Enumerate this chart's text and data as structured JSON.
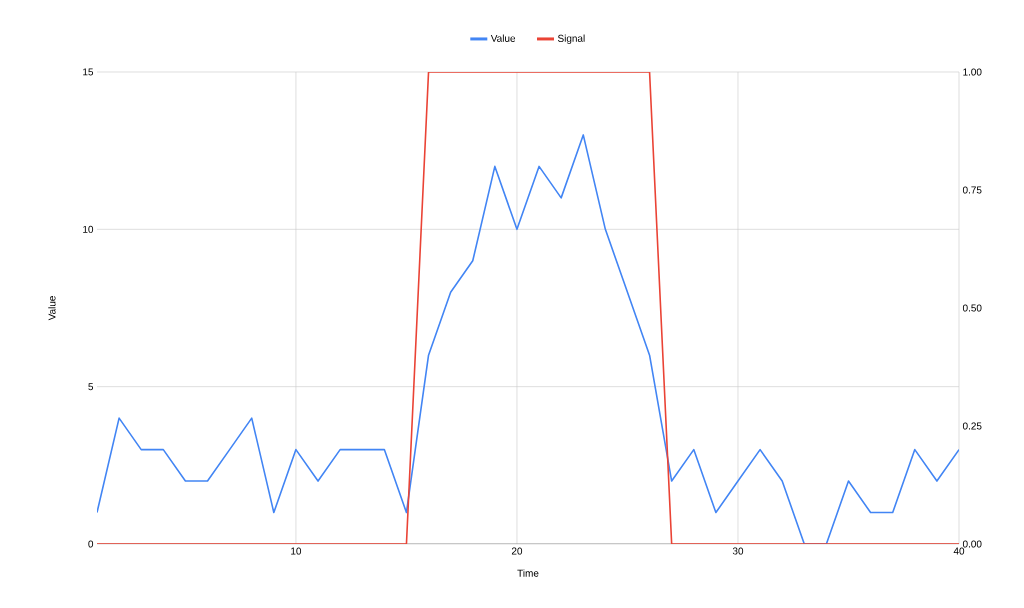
{
  "chart_data": {
    "type": "line",
    "xlabel": "Time",
    "ylabel": "Value",
    "x": [
      1,
      2,
      3,
      4,
      5,
      6,
      7,
      8,
      9,
      10,
      11,
      12,
      13,
      14,
      15,
      16,
      17,
      18,
      19,
      20,
      21,
      22,
      23,
      24,
      25,
      26,
      27,
      28,
      29,
      30,
      31,
      32,
      33,
      34,
      35,
      36,
      37,
      38,
      39,
      40
    ],
    "series": [
      {
        "name": "Value",
        "color": "#4285f4",
        "values": [
          1,
          4,
          3,
          3,
          2,
          2,
          3,
          4,
          1,
          3,
          2,
          3,
          3,
          3,
          1,
          6,
          8,
          9,
          12,
          10,
          12,
          11,
          13,
          10,
          8,
          6,
          2,
          3,
          1,
          2,
          3,
          2,
          0,
          0,
          2,
          1,
          1,
          3,
          2,
          3
        ]
      },
      {
        "name": "Signal",
        "color": "#ea4335",
        "axis": "y2",
        "values": [
          0,
          0,
          0,
          0,
          0,
          0,
          0,
          0,
          0,
          0,
          0,
          0,
          0,
          0,
          0,
          1,
          1,
          1,
          1,
          1,
          1,
          1,
          1,
          1,
          1,
          1,
          0,
          0,
          0,
          0,
          0,
          0,
          0,
          0,
          0,
          0,
          0,
          0,
          0,
          0
        ]
      }
    ],
    "xlim": [
      1,
      40
    ],
    "xticks": [
      10,
      20,
      30,
      40
    ],
    "ylim": [
      0,
      15
    ],
    "yticks": [
      0,
      5,
      10,
      15
    ],
    "y2lim": [
      0,
      1
    ],
    "y2ticks": [
      {
        "value": 0,
        "label": "0.00"
      },
      {
        "value": 0.25,
        "label": "0.25"
      },
      {
        "value": 0.5,
        "label": "0.50"
      },
      {
        "value": 0.75,
        "label": "0.75"
      },
      {
        "value": 1,
        "label": "1.00"
      }
    ],
    "grid": true,
    "legend": "top"
  }
}
